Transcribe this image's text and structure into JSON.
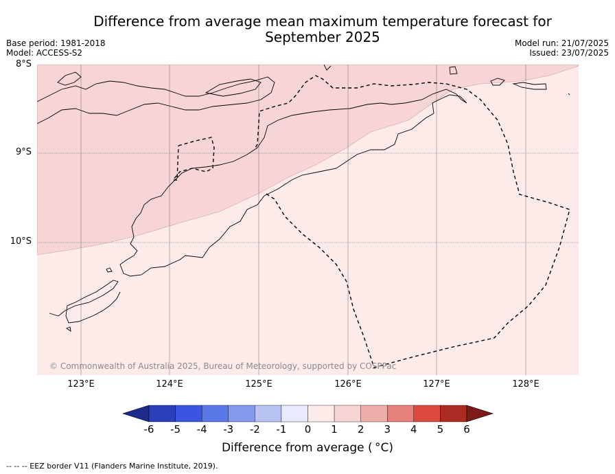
{
  "title_line1": "Difference from average mean maximum temperature forecast for",
  "title_line2": "September 2025",
  "base_period": "Base period: 1981-2018",
  "model": "Model: ACCESS-S2",
  "model_run": "Model run: 21/07/2025",
  "issued": "Issued: 23/07/2025",
  "lat_labels": [
    "8°S",
    "9°S",
    "10°S"
  ],
  "lon_labels": [
    "123°E",
    "124°E",
    "125°E",
    "126°E",
    "127°E",
    "128°E"
  ],
  "copyright": "© Commonwealth of Australia 2025, Bureau of Meteorology, supported by COSPPac",
  "colorbar": {
    "ticks": [
      "-6",
      "-5",
      "-4",
      "-3",
      "-2",
      "-1",
      "0",
      "1",
      "2",
      "3",
      "4",
      "5",
      "6"
    ],
    "colors": [
      "#1c2a8a",
      "#2a3fb8",
      "#3a56e0",
      "#5a78e8",
      "#8499ec",
      "#b9c3f3",
      "#e8ebfb",
      "#fcebe9",
      "#f7d5d4",
      "#eeaeaa",
      "#e6807a",
      "#dc4a3f",
      "#ab2a22",
      "#7c1c18"
    ],
    "title": "Difference from average ( °C)"
  },
  "legend_note": "--  --  -- EEZ border V11 (Flanders Marine Institute, 2019).",
  "map_data": {
    "extent": {
      "lon": [
        122.5,
        128.6
      ],
      "lat": [
        -8.0,
        -11.5
      ]
    },
    "field_colors": {
      "zero_to_one": "#fcebe9",
      "one_to_two": "#f6d5d4"
    }
  }
}
